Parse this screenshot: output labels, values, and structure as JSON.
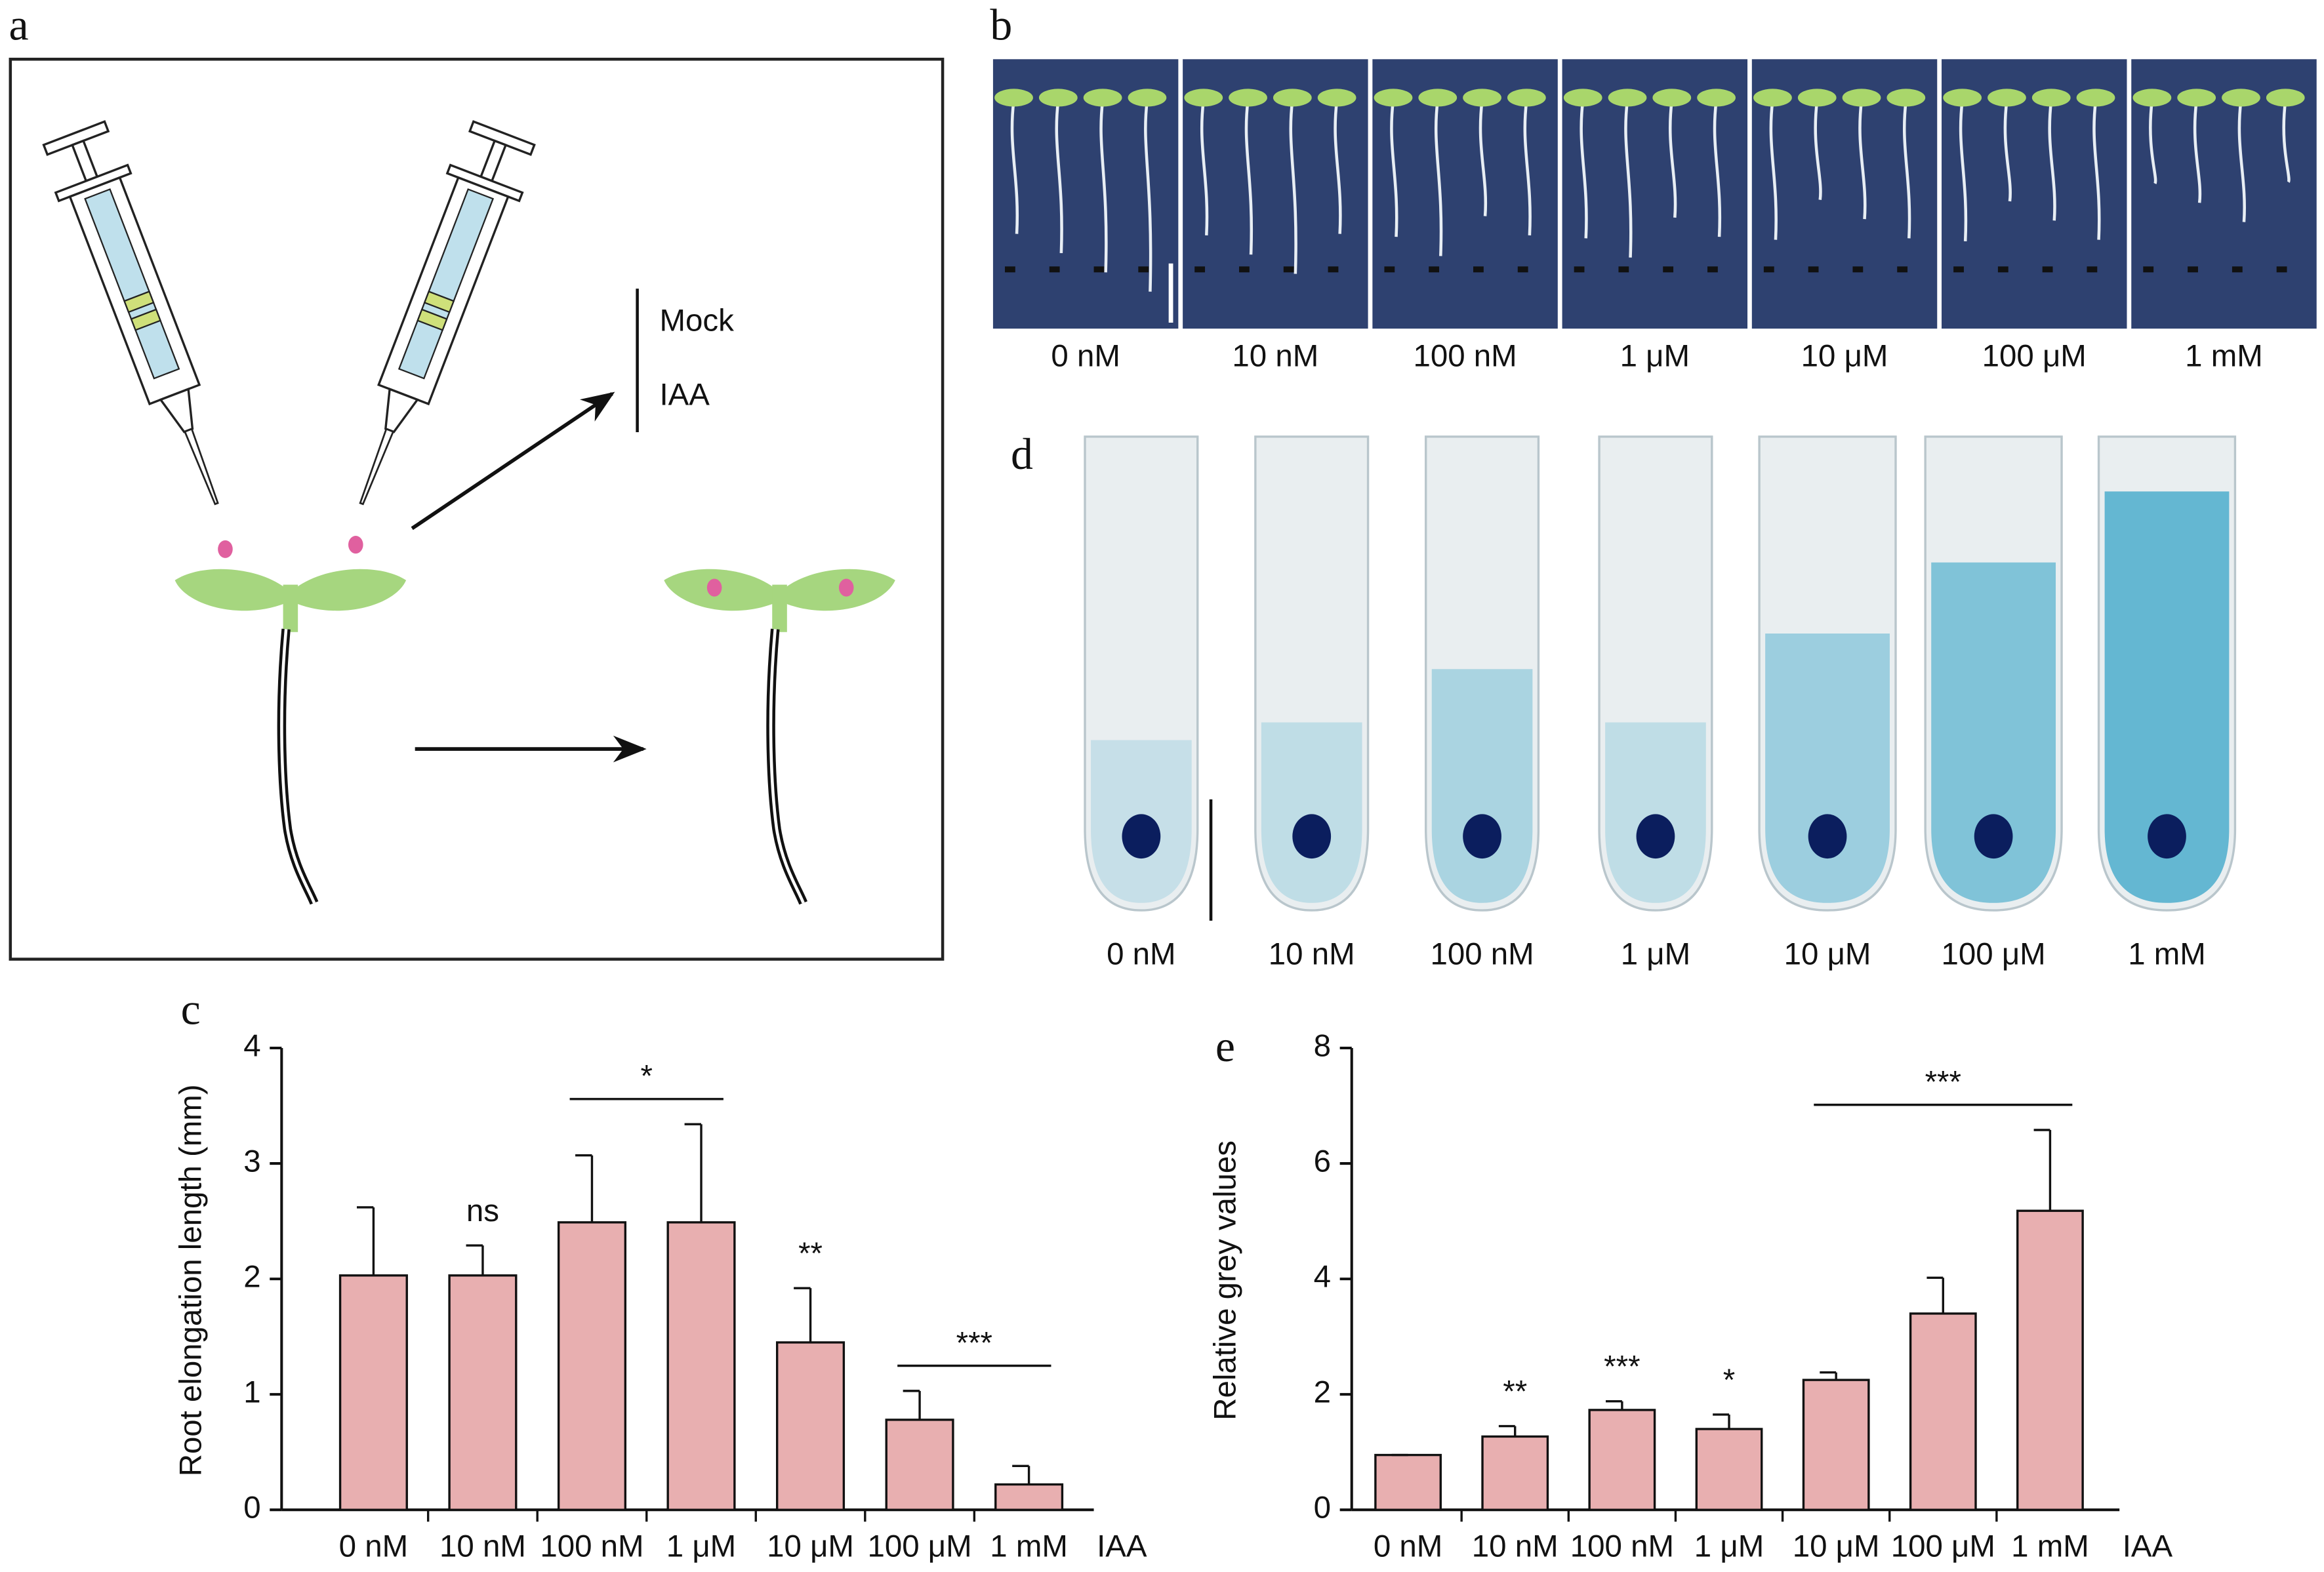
{
  "panel_labels": [
    "a",
    "b",
    "c",
    "d",
    "e"
  ],
  "diagram": {
    "legend": [
      "Mock",
      "IAA"
    ]
  },
  "seedling_images": {
    "labels": [
      "0 nM",
      "10 nM",
      "100 nM",
      "1 μM",
      "10 μM",
      "100 μM",
      "1 mM"
    ]
  },
  "root_images": {
    "labels": [
      "0 nM",
      "10 nM",
      "100 nM",
      "1 μM",
      "10 μM",
      "100 μM",
      "1 mM"
    ]
  },
  "chart_data": [
    {
      "type": "bar",
      "y_label": "Root elongation length (mm)",
      "x_label": "IAA",
      "categories": [
        "0 nM",
        "10 nM",
        "100 nM",
        "1 μM",
        "10 μM",
        "100 μM",
        "1 mM"
      ],
      "values": [
        2.03,
        2.03,
        2.49,
        2.49,
        1.45,
        0.78,
        0.22
      ],
      "errors": [
        0.59,
        0.26,
        0.58,
        0.85,
        0.47,
        0.25,
        0.16
      ],
      "color": "#e8afb0",
      "ylim": [
        0,
        4
      ],
      "yticks": [
        0,
        1,
        2,
        3,
        4
      ],
      "annotations": [
        "ns",
        "*",
        "**",
        "***"
      ]
    },
    {
      "type": "bar",
      "y_label": "Relative grey values",
      "x_label": "IAA",
      "categories": [
        "0 nM",
        "10 nM",
        "100 nM",
        "1 μM",
        "10 μM",
        "100 μM",
        "1 mM"
      ],
      "values": [
        0.95,
        1.27,
        1.73,
        1.4,
        2.25,
        3.4,
        5.18
      ],
      "errors": [
        0,
        0.18,
        0.15,
        0.25,
        0.13,
        0.62,
        1.4
      ],
      "color": "#e8afb0",
      "ylim": [
        0,
        8
      ],
      "yticks": [
        0,
        2,
        4,
        6,
        8
      ],
      "annotations": [
        "**",
        "***",
        "*",
        "***"
      ]
    }
  ]
}
